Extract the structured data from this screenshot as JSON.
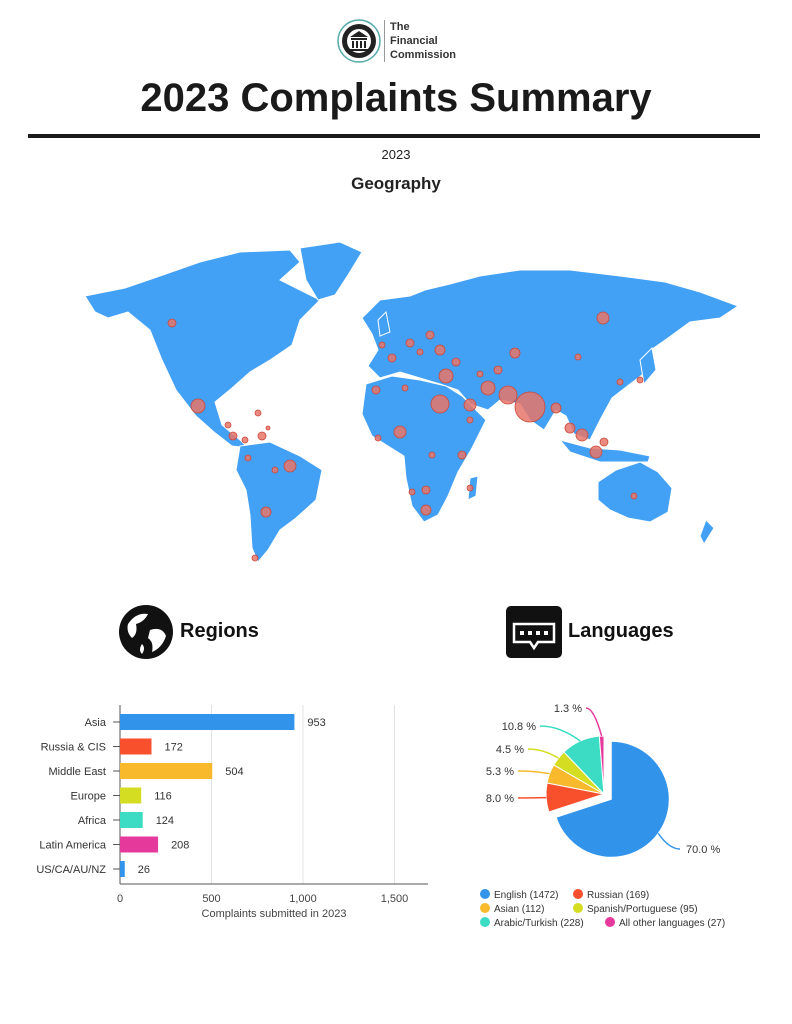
{
  "header": {
    "logo_lines": [
      "The",
      "Financial",
      "Commission"
    ],
    "logo_seal_text": "The Financial Commission",
    "title": "2023 Complaints Summary",
    "year": "2023",
    "section": "Geography"
  },
  "sections": {
    "regions": "Regions",
    "languages": "Languages"
  },
  "icons": {
    "regions": "globe-icon",
    "languages": "speech-bubble-icon"
  },
  "map": {
    "land_color": "#42a0f5",
    "marker_color": "#e8756a"
  },
  "chart_data": [
    {
      "type": "bar",
      "orientation": "horizontal",
      "categories": [
        "Asia",
        "Russia & CIS",
        "Middle East",
        "Europe",
        "Africa",
        "Latin America",
        "US/CA/AU/NZ"
      ],
      "values": [
        953,
        172,
        504,
        116,
        124,
        208,
        26
      ],
      "colors": [
        "#3194ea",
        "#f8502c",
        "#f8b92c",
        "#d4dd22",
        "#3cdcc4",
        "#e53a9c",
        "#3194ea"
      ],
      "xlabel": "Complaints submitted in 2023",
      "xlim": [
        0,
        1700
      ],
      "xticks": [
        "0",
        "500",
        "1,000",
        "1,500"
      ],
      "xtick_values": [
        0,
        500,
        1000,
        1500
      ],
      "grid": true
    },
    {
      "type": "pie",
      "slices": [
        {
          "label": "English (1472)",
          "value": 1472,
          "pct": "70.0 %",
          "color": "#3194ea"
        },
        {
          "label": "Russian (169)",
          "value": 169,
          "pct": "8.0 %",
          "color": "#f8502c"
        },
        {
          "label": "Asian (112)",
          "value": 112,
          "pct": "5.3 %",
          "color": "#f8b92c"
        },
        {
          "label": "Spanish/Portuguese (95)",
          "value": 95,
          "pct": "4.5 %",
          "color": "#d4dd22"
        },
        {
          "label": "Arabic/Turkish (228)",
          "value": 228,
          "pct": "10.8 %",
          "color": "#3cdcc4"
        },
        {
          "label": "All other languages (27)",
          "value": 27,
          "pct": "1.3 %",
          "color": "#e53a9c"
        }
      ],
      "exploded": "English (1472)",
      "legend": "bottom"
    }
  ]
}
